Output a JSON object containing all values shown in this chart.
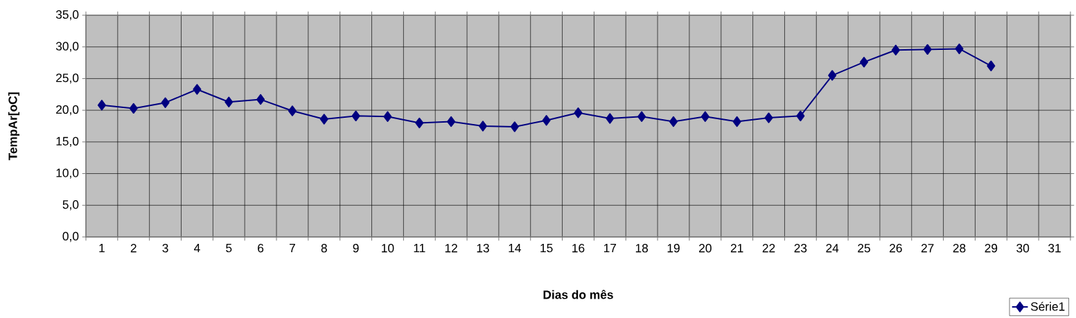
{
  "chart_data": {
    "type": "line",
    "xlabel": "Dias do mês",
    "ylabel": "TempAr[oC]",
    "categories": [
      "1",
      "2",
      "3",
      "4",
      "5",
      "6",
      "7",
      "8",
      "9",
      "10",
      "11",
      "12",
      "13",
      "14",
      "15",
      "16",
      "17",
      "18",
      "19",
      "20",
      "21",
      "22",
      "23",
      "24",
      "25",
      "26",
      "27",
      "28",
      "29",
      "30",
      "31"
    ],
    "series": [
      {
        "name": "Série1",
        "color": "#000080",
        "values": [
          20.8,
          20.3,
          21.2,
          23.3,
          21.3,
          21.7,
          19.9,
          18.6,
          19.1,
          19.0,
          18.0,
          18.2,
          17.5,
          17.4,
          18.4,
          19.6,
          18.7,
          19.0,
          18.2,
          19.0,
          18.2,
          18.8,
          19.1,
          25.5,
          27.6,
          29.5,
          29.6,
          29.7,
          27.0,
          null,
          null
        ]
      }
    ],
    "ylim": [
      0,
      35
    ],
    "yticks": [
      {
        "value": 0,
        "label": "0,0"
      },
      {
        "value": 5,
        "label": "5,0"
      },
      {
        "value": 10,
        "label": "10,0"
      },
      {
        "value": 15,
        "label": "15,0"
      },
      {
        "value": 20,
        "label": "20,0"
      },
      {
        "value": 25,
        "label": "25,0"
      },
      {
        "value": 30,
        "label": "30,0"
      },
      {
        "value": 35,
        "label": "35,0"
      }
    ],
    "grid": true,
    "legend": "bottom right",
    "marker": "diamond",
    "line_style": "solid"
  }
}
